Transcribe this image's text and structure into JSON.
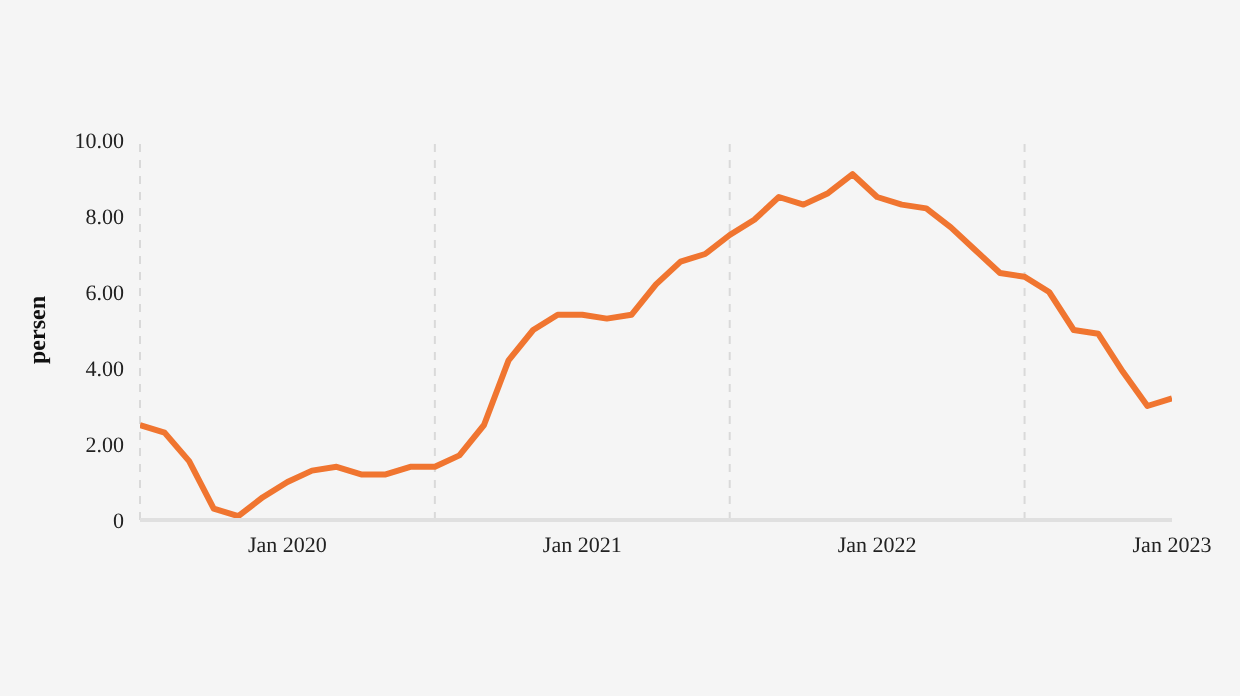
{
  "chart_data": {
    "type": "line",
    "ylabel": "persen",
    "x": [
      "2019-07",
      "2019-08",
      "2019-09",
      "2019-10",
      "2019-11",
      "2019-12",
      "2020-01",
      "2020-02",
      "2020-03",
      "2020-04",
      "2020-05",
      "2020-06",
      "2020-07",
      "2020-08",
      "2020-09",
      "2020-10",
      "2020-11",
      "2020-12",
      "2021-01",
      "2021-02",
      "2021-03",
      "2021-04",
      "2021-05",
      "2021-06",
      "2021-07",
      "2021-08",
      "2021-09",
      "2021-10",
      "2021-11",
      "2021-12",
      "2022-01",
      "2022-02",
      "2022-03",
      "2022-04",
      "2022-05",
      "2022-06",
      "2022-07",
      "2022-08",
      "2022-09",
      "2022-10",
      "2022-11",
      "2022-12",
      "2023-01"
    ],
    "series": [
      {
        "color": "#f07530",
        "values": [
          2.5,
          2.3,
          1.55,
          0.3,
          0.1,
          0.6,
          1.0,
          1.3,
          1.4,
          1.2,
          1.2,
          1.4,
          1.4,
          1.7,
          2.5,
          4.2,
          5.0,
          5.4,
          5.4,
          5.3,
          5.4,
          6.2,
          6.8,
          7.0,
          7.5,
          7.9,
          8.5,
          8.3,
          8.6,
          9.1,
          8.5,
          8.3,
          8.2,
          7.7,
          7.1,
          6.5,
          6.4,
          6.0,
          5.0,
          4.9,
          3.9,
          3.0,
          3.2
        ]
      }
    ],
    "xlim": [
      "2019-07",
      "2023-01"
    ],
    "xticks": [
      {
        "value": "2020-01",
        "label": "Jan 2020"
      },
      {
        "value": "2021-01",
        "label": "Jan 2021"
      },
      {
        "value": "2022-01",
        "label": "Jan 2022"
      },
      {
        "value": "2023-01",
        "label": "Jan 2023"
      }
    ],
    "ylim": [
      0,
      10
    ],
    "yticks": [
      0,
      {
        "value": 2,
        "label": "2.00"
      },
      {
        "value": 4,
        "label": "4.00"
      },
      {
        "value": 6,
        "label": "6.00"
      },
      {
        "value": 8,
        "label": "8.00"
      },
      {
        "value": 10,
        "label": "10.00"
      }
    ],
    "ref_lines": [
      {
        "axis": "x",
        "value": "2019-07",
        "color": "#d9d9d9",
        "line_style": "dashed"
      },
      {
        "axis": "x",
        "value": "2020-07",
        "color": "#d9d9d9",
        "line_style": "dashed"
      },
      {
        "axis": "x",
        "value": "2021-07",
        "color": "#d9d9d9",
        "line_style": "dashed"
      },
      {
        "axis": "x",
        "value": "2022-07",
        "color": "#d9d9d9",
        "line_style": "dashed"
      }
    ],
    "grid": false,
    "legend": false,
    "marker": "none",
    "line_style": "solid"
  }
}
